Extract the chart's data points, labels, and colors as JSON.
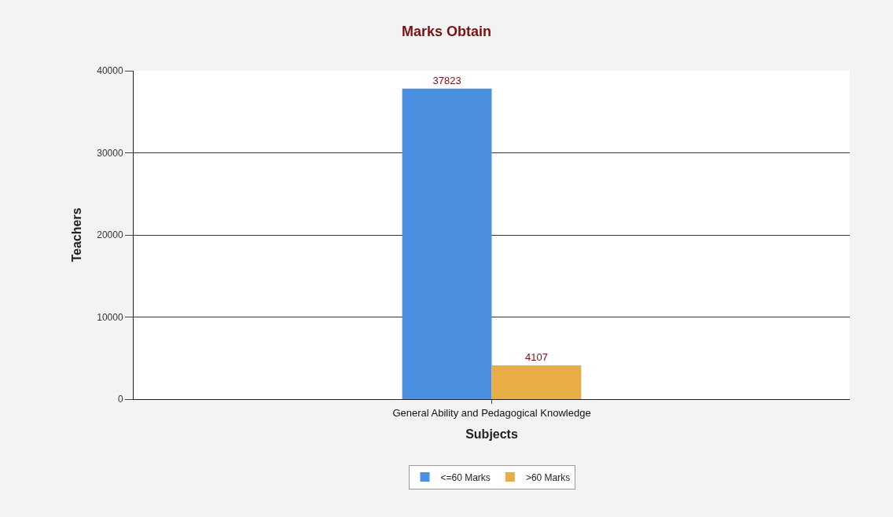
{
  "chart_data": {
    "type": "bar",
    "title": "Marks Obtain",
    "xlabel": "Subjects",
    "ylabel": "Teachers",
    "categories": [
      "General Ability and Pedagogical Knowledge"
    ],
    "series": [
      {
        "name": "<=60 Marks",
        "color": "#4a8fe0",
        "values": [
          37823
        ]
      },
      {
        "name": ">60 Marks",
        "color": "#e8ad45",
        "values": [
          4107
        ]
      }
    ],
    "ylim": [
      0,
      40000
    ],
    "yticks": [
      0,
      10000,
      20000,
      30000,
      40000
    ],
    "grid": "y",
    "legend": "bottom",
    "data_labels": true
  }
}
